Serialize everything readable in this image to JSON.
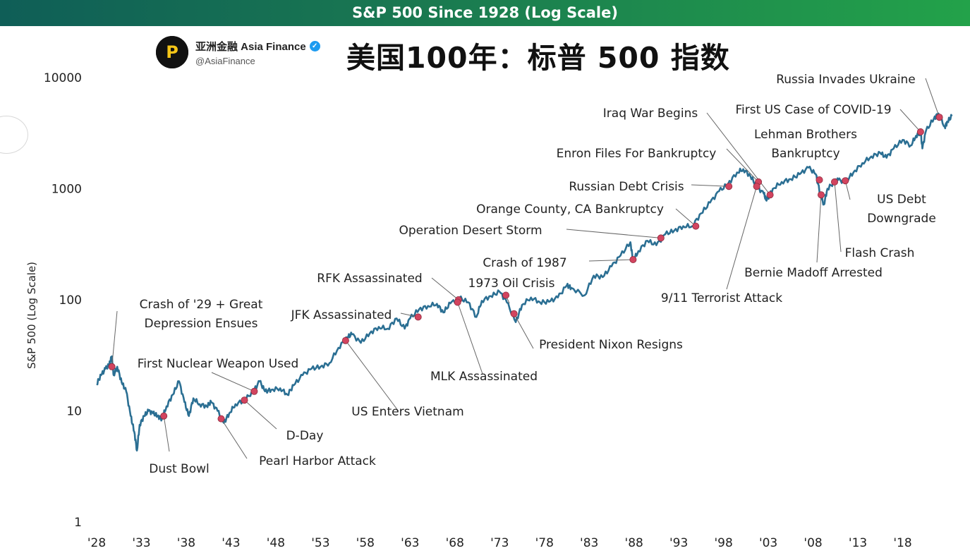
{
  "banner_title": "S&P 500 Since 1928 (Log Scale)",
  "brand": {
    "logo_glyph": "P",
    "name": "亚洲金融 Asia Finance",
    "verified_glyph": "✓",
    "handle": "@AsiaFinance"
  },
  "headline": "美国100年：标普 500 指数",
  "colors": {
    "line": "#2b6f93",
    "event_marker": "#d2445f",
    "banner_start": "#0f5e57",
    "banner_end": "#23a24a"
  },
  "chart_data": {
    "type": "line",
    "title": "S&P 500 Since 1928 (Log Scale)",
    "ylabel": "S&P 500 (Log Scale)",
    "xlabel": "",
    "yscale": "log",
    "ylim": [
      1,
      10000
    ],
    "xlim": [
      1928,
      2023
    ],
    "x_ticks": [
      {
        "year": 1928,
        "label": "'28"
      },
      {
        "year": 1933,
        "label": "'33"
      },
      {
        "year": 1938,
        "label": "'38"
      },
      {
        "year": 1943,
        "label": "'43"
      },
      {
        "year": 1948,
        "label": "'48"
      },
      {
        "year": 1953,
        "label": "'53"
      },
      {
        "year": 1958,
        "label": "'58"
      },
      {
        "year": 1963,
        "label": "'63"
      },
      {
        "year": 1968,
        "label": "'68"
      },
      {
        "year": 1973,
        "label": "'73"
      },
      {
        "year": 1978,
        "label": "'78"
      },
      {
        "year": 1983,
        "label": "'83"
      },
      {
        "year": 1988,
        "label": "'88"
      },
      {
        "year": 1993,
        "label": "'93"
      },
      {
        "year": 1998,
        "label": "'98"
      },
      {
        "year": 2003,
        "label": "'03"
      },
      {
        "year": 2008,
        "label": "'08"
      },
      {
        "year": 2013,
        "label": "'13"
      },
      {
        "year": 2018,
        "label": "'18"
      }
    ],
    "y_ticks": [
      {
        "value": 1,
        "label": "1"
      },
      {
        "value": 10,
        "label": "10"
      },
      {
        "value": 100,
        "label": "100"
      },
      {
        "value": 1000,
        "label": "1000"
      },
      {
        "value": 10000,
        "label": "10000"
      }
    ],
    "series": [
      {
        "name": "S&P 500",
        "points": [
          [
            1928.0,
            17.5
          ],
          [
            1928.5,
            21
          ],
          [
            1929.0,
            24
          ],
          [
            1929.4,
            26
          ],
          [
            1929.7,
            31
          ],
          [
            1929.9,
            21
          ],
          [
            1930.3,
            25
          ],
          [
            1930.8,
            18
          ],
          [
            1931.3,
            15
          ],
          [
            1931.8,
            9
          ],
          [
            1932.2,
            6.5
          ],
          [
            1932.5,
            4.4
          ],
          [
            1932.8,
            7.5
          ],
          [
            1933.3,
            9
          ],
          [
            1933.8,
            10
          ],
          [
            1934.3,
            9.5
          ],
          [
            1934.8,
            9
          ],
          [
            1935.3,
            8.5
          ],
          [
            1935.8,
            11
          ],
          [
            1936.5,
            14
          ],
          [
            1937.2,
            18.5
          ],
          [
            1937.8,
            12
          ],
          [
            1938.3,
            9
          ],
          [
            1938.8,
            13
          ],
          [
            1939.5,
            11.5
          ],
          [
            1940.3,
            11
          ],
          [
            1940.8,
            12
          ],
          [
            1941.5,
            10
          ],
          [
            1942.2,
            7.8
          ],
          [
            1942.8,
            9.5
          ],
          [
            1943.5,
            11.5
          ],
          [
            1944.5,
            12.5
          ],
          [
            1945.5,
            15
          ],
          [
            1946.2,
            18.5
          ],
          [
            1946.8,
            15
          ],
          [
            1947.5,
            15.5
          ],
          [
            1948.5,
            16
          ],
          [
            1949.3,
            14
          ],
          [
            1950.0,
            17
          ],
          [
            1951.0,
            21
          ],
          [
            1952.0,
            24
          ],
          [
            1953.0,
            25
          ],
          [
            1954.0,
            27
          ],
          [
            1955.0,
            37
          ],
          [
            1956.0,
            46
          ],
          [
            1956.5,
            49
          ],
          [
            1957.5,
            41
          ],
          [
            1958.5,
            50
          ],
          [
            1959.5,
            57
          ],
          [
            1960.5,
            55
          ],
          [
            1961.5,
            68
          ],
          [
            1962.4,
            55
          ],
          [
            1963.0,
            68
          ],
          [
            1964.0,
            82
          ],
          [
            1965.0,
            88
          ],
          [
            1966.0,
            92
          ],
          [
            1966.7,
            77
          ],
          [
            1967.5,
            93
          ],
          [
            1968.5,
            104
          ],
          [
            1969.5,
            95
          ],
          [
            1970.4,
            70
          ],
          [
            1971.0,
            98
          ],
          [
            1972.0,
            108
          ],
          [
            1973.0,
            118
          ],
          [
            1973.8,
            95
          ],
          [
            1974.8,
            63
          ],
          [
            1975.5,
            90
          ],
          [
            1976.5,
            105
          ],
          [
            1977.5,
            95
          ],
          [
            1978.5,
            96
          ],
          [
            1979.5,
            105
          ],
          [
            1980.5,
            135
          ],
          [
            1981.0,
            128
          ],
          [
            1982.5,
            110
          ],
          [
            1983.5,
            165
          ],
          [
            1984.5,
            160
          ],
          [
            1985.5,
            200
          ],
          [
            1986.5,
            250
          ],
          [
            1987.6,
            330
          ],
          [
            1987.9,
            225
          ],
          [
            1988.5,
            275
          ],
          [
            1989.5,
            340
          ],
          [
            1990.5,
            310
          ],
          [
            1991.5,
            390
          ],
          [
            1992.5,
            420
          ],
          [
            1993.5,
            460
          ],
          [
            1994.5,
            460
          ],
          [
            1995.5,
            600
          ],
          [
            1996.5,
            750
          ],
          [
            1997.5,
            950
          ],
          [
            1998.5,
            1100
          ],
          [
            1999.5,
            1400
          ],
          [
            2000.2,
            1500
          ],
          [
            2001.0,
            1300
          ],
          [
            2001.7,
            1050
          ],
          [
            2002.5,
            900
          ],
          [
            2002.8,
            780
          ],
          [
            2003.5,
            1000
          ],
          [
            2004.5,
            1150
          ],
          [
            2005.5,
            1220
          ],
          [
            2006.5,
            1350
          ],
          [
            2007.5,
            1550
          ],
          [
            2008.3,
            1350
          ],
          [
            2008.8,
            900
          ],
          [
            2009.2,
            720
          ],
          [
            2009.6,
            1000
          ],
          [
            2010.4,
            1150
          ],
          [
            2010.8,
            1200
          ],
          [
            2011.6,
            1150
          ],
          [
            2012.5,
            1400
          ],
          [
            2013.5,
            1700
          ],
          [
            2014.5,
            1950
          ],
          [
            2015.5,
            2100
          ],
          [
            2016.2,
            1900
          ],
          [
            2017.0,
            2300
          ],
          [
            2018.0,
            2750
          ],
          [
            2018.9,
            2450
          ],
          [
            2019.5,
            3000
          ],
          [
            2020.0,
            3250
          ],
          [
            2020.2,
            2300
          ],
          [
            2020.6,
            3300
          ],
          [
            2021.5,
            4300
          ],
          [
            2022.0,
            4750
          ],
          [
            2022.7,
            3600
          ],
          [
            2023.0,
            4000
          ],
          [
            2023.5,
            4500
          ]
        ]
      }
    ],
    "events": [
      {
        "label": "Crash of '29 + Great",
        "label2": "Depression Ensues",
        "year": 1929.7,
        "value": 25
      },
      {
        "label": "Dust Bowl",
        "year": 1935.5,
        "value": 9
      },
      {
        "label": "First Nuclear Weapon Used",
        "year": 1945.6,
        "value": 15
      },
      {
        "label": "D-Day",
        "year": 1944.5,
        "value": 12.5
      },
      {
        "label": "Pearl Harbor Attack",
        "year": 1941.9,
        "value": 8.5
      },
      {
        "label": "US Enters Vietnam",
        "year": 1955.8,
        "value": 43
      },
      {
        "label": "JFK Assassinated",
        "year": 1963.9,
        "value": 70
      },
      {
        "label": "RFK Assassinated",
        "year": 1968.4,
        "value": 100
      },
      {
        "label": "MLK Assassinated",
        "year": 1968.3,
        "value": 95
      },
      {
        "label": "Crash of 1987",
        "year": 1987.9,
        "value": 230
      },
      {
        "label": "1973 Oil Crisis",
        "year": 1973.7,
        "value": 110
      },
      {
        "label": "President Nixon Resigns",
        "year": 1974.6,
        "value": 75
      },
      {
        "label": "Operation Desert Storm",
        "year": 1991.0,
        "value": 360
      },
      {
        "label": "Orange County, CA Bankruptcy",
        "year": 1994.9,
        "value": 460
      },
      {
        "label": "Russian Debt Crisis",
        "year": 1998.6,
        "value": 1050
      },
      {
        "label": "Enron Files For Bankruptcy",
        "year": 2001.9,
        "value": 1150
      },
      {
        "label": "Iraq War Begins",
        "year": 2003.2,
        "value": 880
      },
      {
        "label": "9/11 Terrorist Attack",
        "year": 2001.7,
        "value": 1050
      },
      {
        "label": "Lehman Brothers",
        "label2": "Bankruptcy",
        "year": 2008.7,
        "value": 1200
      },
      {
        "label": "Bernie Madoff Arrested",
        "year": 2008.9,
        "value": 880
      },
      {
        "label": "Flash Crash",
        "year": 2010.4,
        "value": 1150
      },
      {
        "label": "US Debt",
        "label2": "Downgrade",
        "year": 2011.6,
        "value": 1180
      },
      {
        "label": "First US Case of COVID-19",
        "year": 2020.0,
        "value": 3250
      },
      {
        "label": "Russia Invades Ukraine",
        "year": 2022.1,
        "value": 4400
      }
    ]
  }
}
